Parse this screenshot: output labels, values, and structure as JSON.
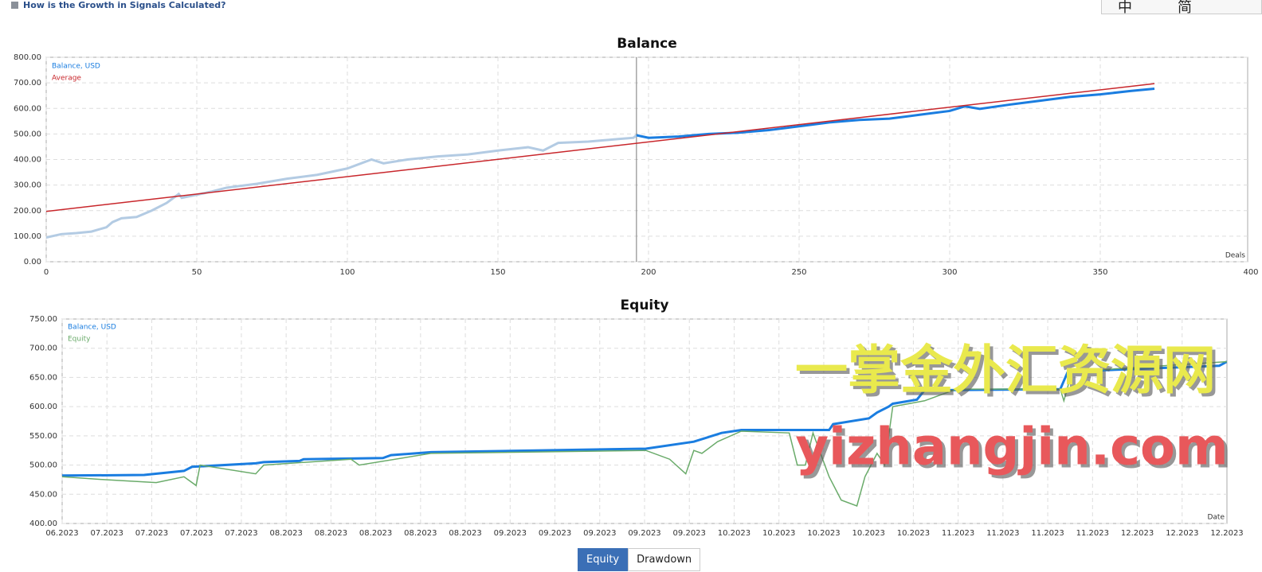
{
  "header": {
    "link": "How is the Growth in Signals Calculated?",
    "ime": [
      "中",
      "简"
    ]
  },
  "chart_data": [
    {
      "type": "line",
      "title": "Balance",
      "x_label": "Deals",
      "xlim": [
        0,
        400
      ],
      "xticks": [
        0,
        50,
        100,
        150,
        200,
        250,
        300,
        350,
        400
      ],
      "ylim": [
        0,
        800
      ],
      "yticks": [
        {
          "value": 0,
          "label": "0.00"
        },
        {
          "value": 100,
          "label": "100.00"
        },
        {
          "value": 200,
          "label": "200.00"
        },
        {
          "value": 300,
          "label": "300.00"
        },
        {
          "value": 400,
          "label": "400.00"
        },
        {
          "value": 500,
          "label": "500.00"
        },
        {
          "value": 600,
          "label": "600.00"
        },
        {
          "value": 700,
          "label": "700.00"
        },
        {
          "value": 800,
          "label": "800.00"
        }
      ],
      "grid": true,
      "marker_x": 196,
      "series": [
        {
          "name": "Balance, USD",
          "color": "#1a7de0",
          "history_color": "#b3cbe3",
          "x": [
            0,
            5,
            10,
            15,
            20,
            22,
            25,
            30,
            35,
            40,
            44,
            45,
            50,
            55,
            60,
            70,
            80,
            90,
            100,
            108,
            112,
            120,
            130,
            140,
            150,
            160,
            165,
            170,
            180,
            190,
            195,
            196,
            200,
            210,
            220,
            230,
            240,
            250,
            260,
            270,
            280,
            290,
            300,
            305,
            310,
            320,
            330,
            340,
            350,
            360,
            368
          ],
          "values": [
            95,
            108,
            112,
            118,
            135,
            155,
            170,
            175,
            200,
            230,
            265,
            250,
            262,
            275,
            290,
            305,
            325,
            340,
            365,
            400,
            385,
            400,
            412,
            420,
            435,
            448,
            435,
            465,
            470,
            480,
            485,
            495,
            485,
            490,
            500,
            505,
            515,
            530,
            545,
            555,
            560,
            575,
            590,
            608,
            598,
            615,
            630,
            645,
            655,
            668,
            677
          ]
        },
        {
          "name": "Average",
          "color": "#c8262b",
          "x": [
            0,
            368
          ],
          "values": [
            197,
            697
          ]
        }
      ]
    },
    {
      "type": "line",
      "title": "Equity",
      "x_label": "Date",
      "xlim": [
        0,
        26
      ],
      "xticks": [
        {
          "value": 0,
          "label": "06.2023"
        },
        {
          "value": 1,
          "label": "07.2023"
        },
        {
          "value": 2,
          "label": "07.2023"
        },
        {
          "value": 3,
          "label": "07.2023"
        },
        {
          "value": 4,
          "label": "07.2023"
        },
        {
          "value": 5,
          "label": "08.2023"
        },
        {
          "value": 6,
          "label": "08.2023"
        },
        {
          "value": 7,
          "label": "08.2023"
        },
        {
          "value": 8,
          "label": "08.2023"
        },
        {
          "value": 9,
          "label": "08.2023"
        },
        {
          "value": 10,
          "label": "09.2023"
        },
        {
          "value": 11,
          "label": "09.2023"
        },
        {
          "value": 12,
          "label": "09.2023"
        },
        {
          "value": 13,
          "label": "09.2023"
        },
        {
          "value": 14,
          "label": "09.2023"
        },
        {
          "value": 15,
          "label": "10.2023"
        },
        {
          "value": 16,
          "label": "10.2023"
        },
        {
          "value": 17,
          "label": "10.2023"
        },
        {
          "value": 18,
          "label": "10.2023"
        },
        {
          "value": 19,
          "label": "10.2023"
        },
        {
          "value": 20,
          "label": "11.2023"
        },
        {
          "value": 21,
          "label": "11.2023"
        },
        {
          "value": 22,
          "label": "11.2023"
        },
        {
          "value": 23,
          "label": "11.2023"
        },
        {
          "value": 24,
          "label": "12.2023"
        },
        {
          "value": 25,
          "label": "12.2023"
        },
        {
          "value": 26,
          "label": "12.2023"
        }
      ],
      "ylim": [
        400,
        750
      ],
      "yticks": [
        {
          "value": 400,
          "label": "400.00"
        },
        {
          "value": 450,
          "label": "450.00"
        },
        {
          "value": 500,
          "label": "500.00"
        },
        {
          "value": 550,
          "label": "550.00"
        },
        {
          "value": 600,
          "label": "600.00"
        },
        {
          "value": 650,
          "label": "650.00"
        },
        {
          "value": 700,
          "label": "700.00"
        },
        {
          "value": 750,
          "label": "750.00"
        }
      ],
      "grid": true,
      "series": [
        {
          "name": "Balance, USD",
          "color": "#1a7de0",
          "x": [
            0,
            1.83,
            2.72,
            2.9,
            4.32,
            4.5,
            5.3,
            5.39,
            7.16,
            7.34,
            8.23,
            13.03,
            14.1,
            14.72,
            15.16,
            17.12,
            17.21,
            18.01,
            18.19,
            18.45,
            18.54,
            19.08,
            19.25,
            22.28,
            22.45,
            25.83,
            26
          ],
          "values": [
            482,
            483,
            490,
            497,
            503,
            505,
            507,
            510,
            512,
            517,
            522,
            528,
            540,
            555,
            560,
            560,
            570,
            580,
            590,
            600,
            605,
            612,
            628,
            630,
            660,
            670,
            677
          ]
        },
        {
          "name": "Equity",
          "color": "#6aab6a",
          "x": [
            0,
            0.94,
            2.1,
            2.72,
            2.99,
            3.08,
            4.32,
            4.5,
            6.45,
            6.63,
            8.23,
            13.03,
            13.56,
            13.92,
            14.1,
            14.28,
            14.63,
            15.16,
            16.23,
            16.41,
            16.59,
            16.76,
            17.12,
            17.39,
            17.74,
            17.92,
            18.19,
            18.36,
            18.54,
            19.25,
            19.96,
            22.28,
            22.36,
            22.54,
            26
          ],
          "values": [
            480,
            475,
            470,
            480,
            465,
            500,
            485,
            500,
            510,
            500,
            520,
            525,
            510,
            485,
            525,
            520,
            540,
            558,
            555,
            500,
            500,
            555,
            480,
            440,
            430,
            480,
            520,
            500,
            600,
            610,
            630,
            630,
            610,
            660,
            677
          ]
        }
      ]
    }
  ],
  "watermark": [
    "一掌金外汇资源网",
    "yizhangjin.com"
  ],
  "buttons": [
    "Equity",
    "Drawdown"
  ]
}
